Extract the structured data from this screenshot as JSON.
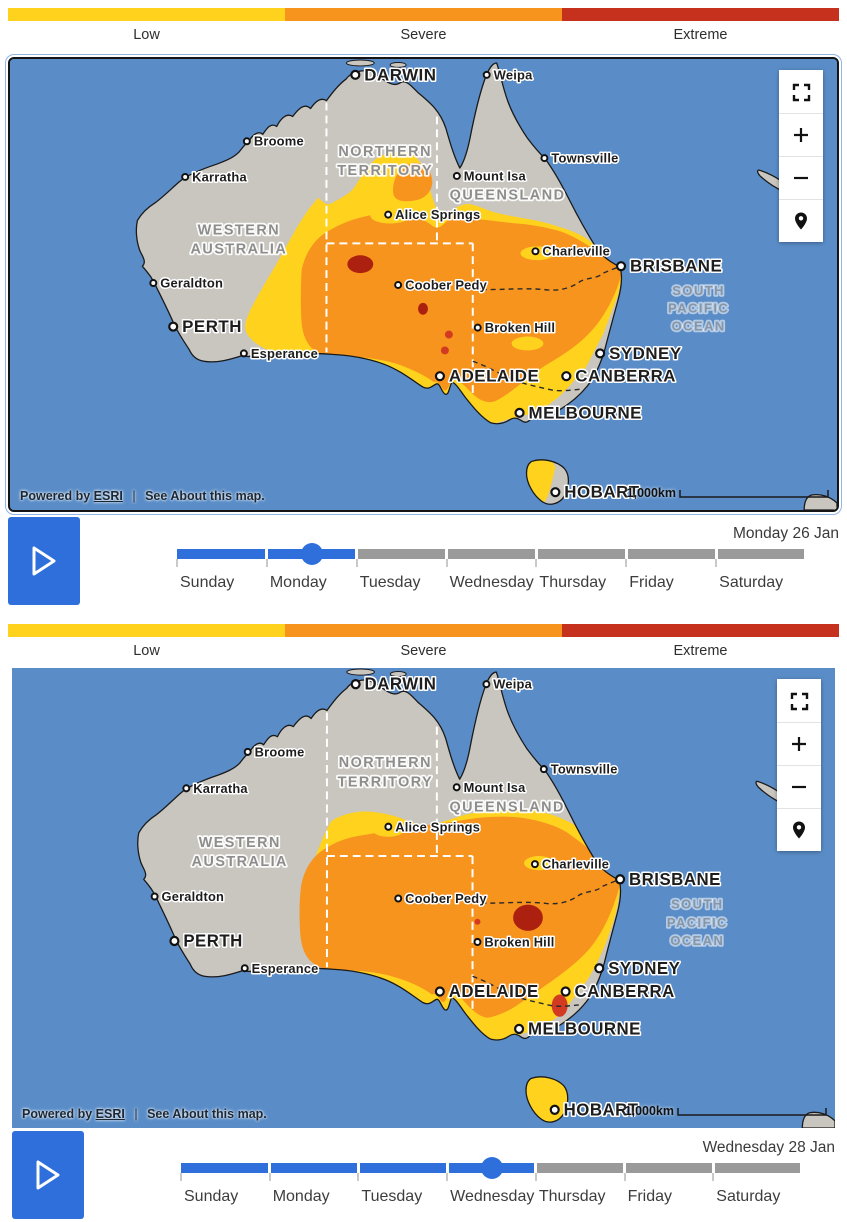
{
  "legend": {
    "segments": [
      {
        "label": "Low",
        "color": "#FFD21E"
      },
      {
        "label": "Severe",
        "color": "#F7941E"
      },
      {
        "label": "Extreme",
        "color": "#C5311D"
      }
    ]
  },
  "map": {
    "cities": [
      {
        "name": "DARWIN",
        "type": "capital"
      },
      {
        "name": "Weipa",
        "type": "town"
      },
      {
        "name": "Broome",
        "type": "town"
      },
      {
        "name": "Townsville",
        "type": "town"
      },
      {
        "name": "Karratha",
        "type": "town"
      },
      {
        "name": "Mount Isa",
        "type": "town"
      },
      {
        "name": "Alice Springs",
        "type": "town"
      },
      {
        "name": "Charleville",
        "type": "town"
      },
      {
        "name": "BRISBANE",
        "type": "capital"
      },
      {
        "name": "Geraldton",
        "type": "town"
      },
      {
        "name": "Coober Pedy",
        "type": "town"
      },
      {
        "name": "Broken Hill",
        "type": "town"
      },
      {
        "name": "PERTH",
        "type": "capital"
      },
      {
        "name": "Esperance",
        "type": "town"
      },
      {
        "name": "SYDNEY",
        "type": "capital"
      },
      {
        "name": "ADELAIDE",
        "type": "capital"
      },
      {
        "name": "CANBERRA",
        "type": "capital"
      },
      {
        "name": "MELBOURNE",
        "type": "capital"
      },
      {
        "name": "HOBART",
        "type": "capital"
      }
    ],
    "states": [
      "NORTHERN\nTERRITORY",
      "QUEENSLAND",
      "WESTERN\nAUSTRALIA"
    ],
    "ocean_label": "SOUTH\nPACIFIC\nOCEAN",
    "attribution": {
      "powered_by": "Powered by",
      "esri": "ESRI",
      "divider": "|",
      "about": "See About this map."
    },
    "scale_label": "1,000km",
    "controls": [
      "fullscreen",
      "zoom-in",
      "zoom-out",
      "locate"
    ]
  },
  "timeline": {
    "days": [
      "Sunday",
      "Monday",
      "Tuesday",
      "Wednesday",
      "Thursday",
      "Friday",
      "Saturday"
    ]
  },
  "maps": [
    {
      "date_label": "Monday 26 Jan",
      "selected_day": "Monday"
    },
    {
      "date_label": "Wednesday 28 Jan",
      "selected_day": "Wednesday"
    }
  ],
  "colors": {
    "ocean": "#5A8DC8",
    "land": "#C9C5BF",
    "coast": "#1A1A1A",
    "low": "#FFD21E",
    "severe": "#F7941E",
    "extreme": "#D23A21",
    "extreme_dark": "#AC200F",
    "track_fill": "#2E6FDC",
    "track_empty": "#9A9A9A",
    "tick": "#C9C9C9",
    "play_bg": "#2E6FDC"
  }
}
